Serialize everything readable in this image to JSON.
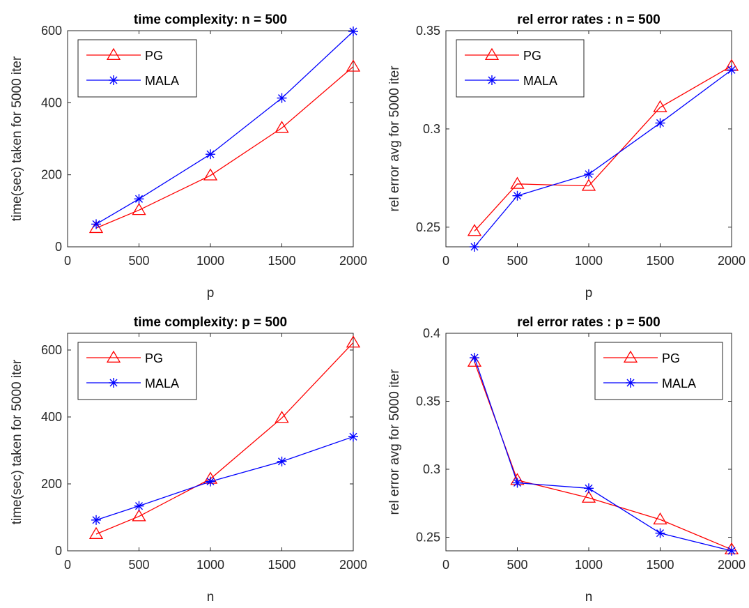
{
  "figure": {
    "background": "#ffffff"
  },
  "chart_data": [
    {
      "type": "line",
      "title": "time complexity: n = 500",
      "xlabel": "p",
      "ylabel": "time(sec) taken for 5000 iter",
      "xlim": [
        0,
        2000
      ],
      "ylim": [
        0,
        600
      ],
      "xticks": [
        0,
        500,
        1000,
        1500,
        2000
      ],
      "yticks": [
        0,
        200,
        400,
        600
      ],
      "x": [
        200,
        500,
        1000,
        1500,
        2000
      ],
      "grid": false,
      "legend": "top-left",
      "series": [
        {
          "name": "PG",
          "color": "#ff0000",
          "marker": "triangle",
          "values": [
            52,
            102,
            198,
            330,
            500
          ]
        },
        {
          "name": "MALA",
          "color": "#0000ff",
          "marker": "asterisk",
          "values": [
            63,
            133,
            257,
            413,
            598
          ]
        }
      ]
    },
    {
      "type": "line",
      "title": "rel error rates : n = 500",
      "xlabel": "p",
      "ylabel": "rel error avg for 5000 iter",
      "xlim": [
        0,
        2000
      ],
      "ylim": [
        0.24,
        0.35
      ],
      "xticks": [
        0,
        500,
        1000,
        1500,
        2000
      ],
      "yticks": [
        0.25,
        0.3,
        0.35
      ],
      "x": [
        200,
        500,
        1000,
        1500,
        2000
      ],
      "grid": false,
      "legend": "top-left",
      "series": [
        {
          "name": "PG",
          "color": "#ff0000",
          "marker": "triangle",
          "values": [
            0.248,
            0.272,
            0.271,
            0.311,
            0.332
          ]
        },
        {
          "name": "MALA",
          "color": "#0000ff",
          "marker": "asterisk",
          "values": [
            0.24,
            0.266,
            0.277,
            0.303,
            0.33
          ]
        }
      ]
    },
    {
      "type": "line",
      "title": "time complexity: p = 500",
      "xlabel": "n",
      "ylabel": "time(sec) taken for 5000 iter",
      "xlim": [
        0,
        2000
      ],
      "ylim": [
        0,
        650
      ],
      "xticks": [
        0,
        500,
        1000,
        1500,
        2000
      ],
      "yticks": [
        0,
        200,
        400,
        600
      ],
      "x": [
        200,
        500,
        1000,
        1500,
        2000
      ],
      "grid": false,
      "legend": "top-left",
      "series": [
        {
          "name": "PG",
          "color": "#ff0000",
          "marker": "triangle",
          "values": [
            50,
            103,
            215,
            397,
            622
          ]
        },
        {
          "name": "MALA",
          "color": "#0000ff",
          "marker": "asterisk",
          "values": [
            92,
            134,
            207,
            267,
            341
          ]
        }
      ]
    },
    {
      "type": "line",
      "title": "rel error rates : p = 500",
      "xlabel": "n",
      "ylabel": "rel error avg for 5000 iter",
      "xlim": [
        0,
        2000
      ],
      "ylim": [
        0.24,
        0.4
      ],
      "xticks": [
        0,
        500,
        1000,
        1500,
        2000
      ],
      "yticks": [
        0.25,
        0.3,
        0.35,
        0.4
      ],
      "x": [
        200,
        500,
        1000,
        1500,
        2000
      ],
      "grid": false,
      "legend": "top-right",
      "series": [
        {
          "name": "PG",
          "color": "#ff0000",
          "marker": "triangle",
          "values": [
            0.379,
            0.292,
            0.279,
            0.263,
            0.241
          ]
        },
        {
          "name": "MALA",
          "color": "#0000ff",
          "marker": "asterisk",
          "values": [
            0.382,
            0.29,
            0.286,
            0.253,
            0.24
          ]
        }
      ]
    }
  ]
}
